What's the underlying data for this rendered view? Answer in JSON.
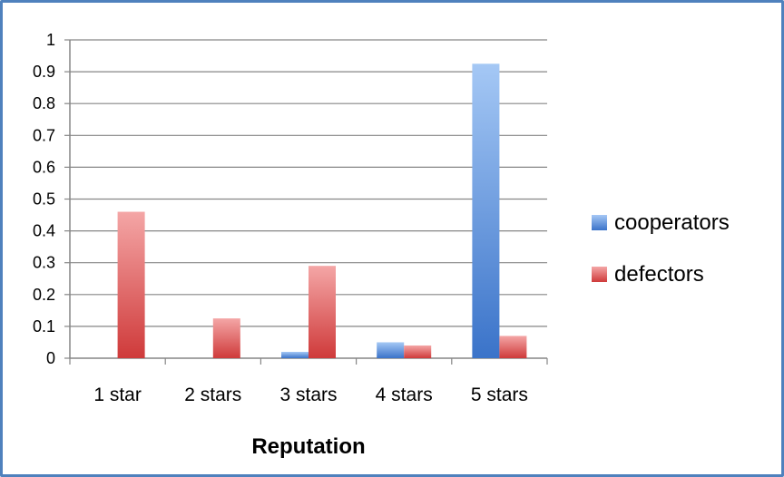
{
  "chart_data": {
    "type": "bar",
    "title": "",
    "xlabel": "Reputation",
    "ylabel": "",
    "ylim": [
      0,
      1
    ],
    "yticks": [
      "0",
      "0.1",
      "0.2",
      "0.3",
      "0.4",
      "0.5",
      "0.6",
      "0.7",
      "0.8",
      "0.9",
      "1"
    ],
    "categories": [
      "1 star",
      "2 stars",
      "3 stars",
      "4 stars",
      "5 stars"
    ],
    "series": [
      {
        "name": "cooperators",
        "values": [
          0,
          0,
          0.02,
          0.05,
          0.925
        ],
        "color": "#4f81bd",
        "color_light": "#a5c8f5",
        "color_dark": "#3a73c9"
      },
      {
        "name": "defectors",
        "values": [
          0.46,
          0.125,
          0.29,
          0.04,
          0.07
        ],
        "color": "#d9534f",
        "color_light": "#f4a6a6",
        "color_dark": "#cf3a3a"
      }
    ],
    "grid": true,
    "legend_position": "right"
  }
}
